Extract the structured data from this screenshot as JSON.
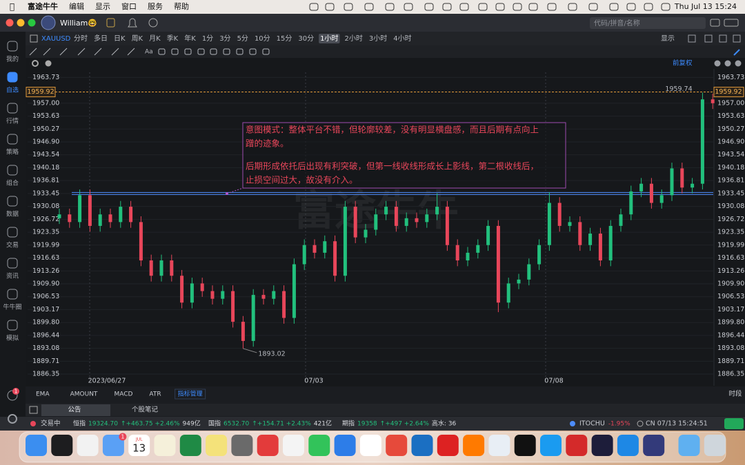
{
  "menubar": {
    "items": [
      "富途牛牛",
      "编辑",
      "显示",
      "窗口",
      "服务",
      "帮助"
    ],
    "clock": "Thu Jul 13  15:24"
  },
  "window": {
    "user": "William🤓",
    "search_placeholder": "代码/拼音/名称"
  },
  "sidebar": {
    "items": [
      "我的",
      "自选",
      "行情",
      "策略",
      "组合",
      "数据",
      "交易",
      "资讯",
      "牛牛圈",
      "模拟"
    ],
    "active": 1,
    "badge": "1"
  },
  "toolbar": {
    "symbol": "XAUUSD",
    "periods": [
      "分时",
      "多日",
      "日K",
      "周K",
      "月K",
      "季K",
      "年K",
      "1分",
      "3分",
      "5分",
      "10分",
      "15分",
      "30分",
      "1小时",
      "2小时",
      "3小时",
      "4小时"
    ],
    "active_period": 13,
    "display": "显示",
    "font_tool": "Aa",
    "adjust": "前复权"
  },
  "chart_data": {
    "type": "candlestick",
    "up_color": "#22c07d",
    "down_color": "#e8465a",
    "watermark": "富途牛牛",
    "open": [
      1927,
      1928,
      1926,
      1933,
      1925,
      1928,
      1926,
      1930,
      1926,
      1916,
      1912,
      1916,
      1912,
      1905,
      1910,
      1908,
      1906,
      1908,
      1900,
      1895,
      1907,
      1906,
      1908,
      1901,
      1915,
      1920,
      1918,
      1921,
      1912,
      1930,
      1922,
      1924,
      1928,
      1930,
      1925,
      1927,
      1926,
      1928,
      1930,
      1920,
      1916,
      1918,
      1920,
      1925,
      1905,
      1910,
      1911,
      1915,
      1920,
      1931,
      1925,
      1926,
      1920,
      1923,
      1916,
      1925,
      1928,
      1934,
      1936,
      1931,
      1933,
      1940,
      1935,
      1936,
      1958
    ],
    "high": [
      1929.5,
      1929.5,
      1934.5,
      1934.5,
      1929.5,
      1929.5,
      1931.5,
      1931.5,
      1927.5,
      1917.5,
      1917.5,
      1917.5,
      1913.5,
      1911.5,
      1911.5,
      1909.5,
      1909.5,
      1909.5,
      1901.5,
      1908.5,
      1908.5,
      1909.5,
      1909.5,
      1916.5,
      1921.5,
      1921.5,
      1922.5,
      1922.5,
      1931.5,
      1931.5,
      1925.5,
      1929.5,
      1931.5,
      1931.5,
      1928.5,
      1928.5,
      1929.5,
      1933.5,
      1931.5,
      1921.5,
      1919.5,
      1921.5,
      1926.5,
      1926.5,
      1911.5,
      1912.5,
      1916.5,
      1921.5,
      1933.8,
      1932.5,
      1927.5,
      1927.5,
      1924.5,
      1924.5,
      1926.5,
      1929.5,
      1935.5,
      1937.5,
      1937.5,
      1934.5,
      1941.5,
      1941.5,
      1937.5,
      1959.74,
      1959.5
    ],
    "low": [
      1925.5,
      1924.5,
      1924.5,
      1923.5,
      1923.5,
      1924.5,
      1924.5,
      1924.5,
      1914.5,
      1910.5,
      1910.5,
      1910.5,
      1903.5,
      1903.5,
      1906.5,
      1904.5,
      1904.5,
      1898.5,
      1893.02,
      1893.5,
      1904.5,
      1904.5,
      1899.5,
      1899.5,
      1913.5,
      1916.5,
      1916.5,
      1910.5,
      1910.5,
      1920.5,
      1920.5,
      1922.5,
      1926.5,
      1923.5,
      1923.5,
      1924.5,
      1924.5,
      1926.5,
      1918.5,
      1914.5,
      1914.5,
      1916.5,
      1918.5,
      1902.5,
      1903.5,
      1908.5,
      1909.5,
      1913.5,
      1918.5,
      1923.5,
      1923.5,
      1918.5,
      1918.5,
      1914.5,
      1914.5,
      1923.5,
      1926.5,
      1932.5,
      1929.5,
      1929.5,
      1931.5,
      1933.5,
      1933.5,
      1934.5,
      1955.5
    ],
    "close": [
      1928,
      1926,
      1933,
      1925,
      1928,
      1926,
      1930,
      1926,
      1916,
      1912,
      1916,
      1912,
      1905,
      1910,
      1908,
      1906,
      1908,
      1900,
      1895,
      1907,
      1906,
      1908,
      1901,
      1915,
      1920,
      1918,
      1921,
      1912,
      1930,
      1922,
      1924,
      1928,
      1930,
      1925,
      1927,
      1926,
      1928,
      1930,
      1920,
      1916,
      1918,
      1920,
      1925,
      1905,
      1910,
      1911,
      1915,
      1920,
      1931,
      1925,
      1926,
      1920,
      1923,
      1916,
      1925,
      1928,
      1934,
      1936,
      1931,
      1933,
      1940,
      1935,
      1936,
      1958,
      1957
    ],
    "x_labels": [
      "2023/06/27",
      "07/03",
      "07/08"
    ],
    "ylim": [
      1886.0,
      1965.05
    ],
    "yticks": [
      1963.73,
      {
        "value": 1957.0,
        "label": "1957.00"
      },
      1953.63,
      1950.27,
      {
        "value": 1946.9,
        "label": "1946.90"
      },
      1943.54,
      1940.18,
      1936.81,
      1933.45,
      1930.08,
      1926.72,
      1923.35,
      1919.99,
      1916.63,
      1913.26,
      {
        "value": 1909.9,
        "label": "1909.90"
      },
      1906.53,
      1903.17,
      {
        "value": 1899.8,
        "label": "1899.80"
      },
      1896.44,
      1893.08,
      1889.71,
      1886.35
    ],
    "grid": true,
    "last_price": 1959.92,
    "high_label": 1959.74,
    "low_label": 1893.02,
    "support_line": 1933.45,
    "annotation": [
      "意图模式：整体平台不错，但轮廓较差，没有明显横盘感，而且后期有点向上",
      "蹭的迹象。",
      "后期形成依托后出现有利突破，但第一线收线形成长上影线，第二根收线后，",
      "止损空间过大，故没有介入。"
    ]
  },
  "indicators": {
    "items": [
      "EMA",
      "AMOUNT",
      "MACD",
      "ATR",
      "指标管理"
    ],
    "session": "时段"
  },
  "tabs": [
    "公告",
    "个股笔记"
  ],
  "statusbar": {
    "state": "交易中",
    "indices": [
      {
        "name": "恒指",
        "value": "19324.70",
        "change": "↑+463.75 +2.46%",
        "extra": "949亿"
      },
      {
        "name": "国指",
        "value": "6532.70",
        "change": "↑+154.71 +2.43%",
        "extra": "421亿"
      },
      {
        "name": "期指",
        "value": "19358",
        "change": "↑+497 +2.64%",
        "extra": "高水: 36"
      }
    ],
    "stock": {
      "name": "ITOCHU",
      "change": "-1.95%"
    },
    "clock": "CN 07/13 15:24:51"
  },
  "dock": {
    "calendar_month": "JUL",
    "calendar_day": "13",
    "mail_badge": "1"
  }
}
